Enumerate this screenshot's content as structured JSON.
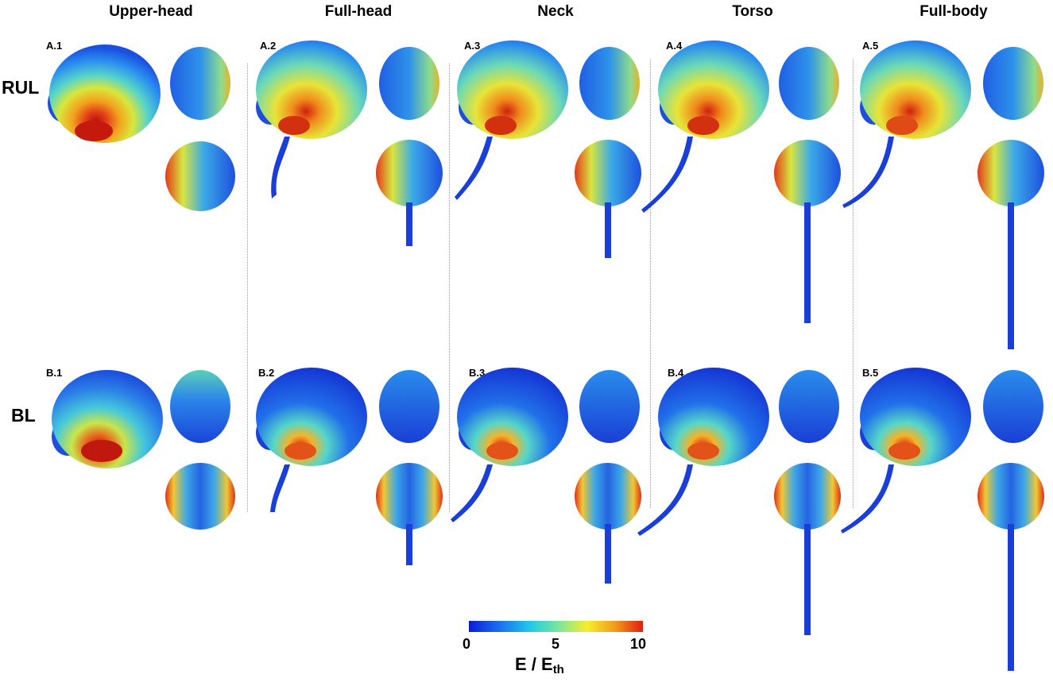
{
  "columns": [
    "Upper-head",
    "Full-head",
    "Neck",
    "Torso",
    "Full-body"
  ],
  "rows": [
    "RUL",
    "BL"
  ],
  "panels": {
    "row_a": [
      "A.1",
      "A.2",
      "A.3",
      "A.4",
      "A.5"
    ],
    "row_b": [
      "B.1",
      "B.2",
      "B.3",
      "B.4",
      "B.5"
    ]
  },
  "colorbar": {
    "ticks": [
      "0",
      "5",
      "10"
    ],
    "label_main": "E / E",
    "label_sub": "th",
    "colors": [
      "#0a1bd8",
      "#1a6cf0",
      "#20c9e8",
      "#7ee79a",
      "#f6ee2a",
      "#f29a1c",
      "#e01d10"
    ]
  }
}
